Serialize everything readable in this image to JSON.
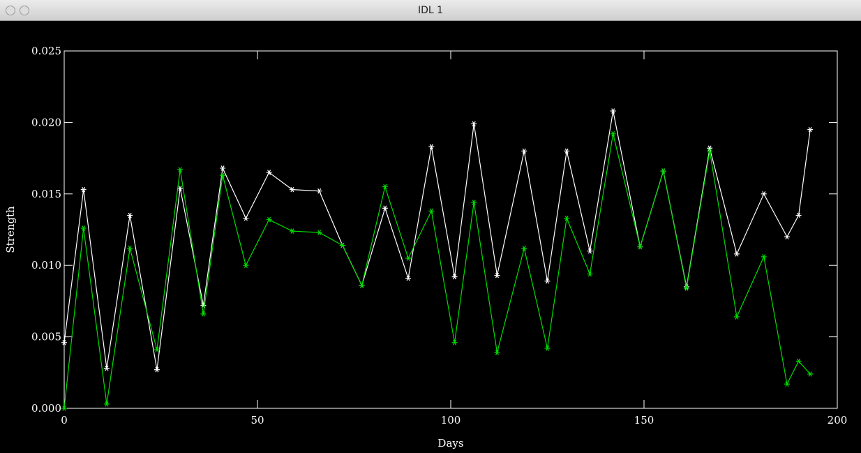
{
  "window": {
    "title": "IDL 1"
  },
  "chart_data": {
    "type": "line",
    "x_label": "Days",
    "y_label": "Strength",
    "x": [
      0,
      5,
      11,
      17,
      24,
      30,
      36,
      41,
      47,
      53,
      59,
      66,
      72,
      77,
      83,
      89,
      95,
      101,
      106,
      112,
      119,
      125,
      130,
      136,
      142,
      149,
      155,
      161,
      167,
      174,
      181,
      187,
      190,
      193
    ],
    "series": [
      {
        "color": "#ffffff",
        "values": [
          0.0046,
          0.0153,
          0.0028,
          0.0135,
          0.0027,
          0.0154,
          0.0072,
          0.0168,
          0.0133,
          0.0165,
          0.0153,
          0.0152,
          0.0114,
          0.0086,
          0.014,
          0.0091,
          0.0183,
          0.0092,
          0.0199,
          0.0093,
          0.018,
          0.0089,
          0.018,
          0.011,
          0.0208,
          0.0113,
          0.0166,
          0.0085,
          0.0182,
          0.0108,
          0.015,
          0.012,
          0.0135,
          0.0195
        ]
      },
      {
        "color": "#00dd00",
        "values": [
          0.0,
          0.0126,
          0.0003,
          0.0112,
          0.0041,
          0.0167,
          0.0066,
          0.0163,
          0.01,
          0.0132,
          0.0124,
          0.0123,
          0.0114,
          0.0086,
          0.0155,
          0.0105,
          0.0138,
          0.0046,
          0.0144,
          0.0039,
          0.0112,
          0.0042,
          0.0133,
          0.0094,
          0.0192,
          0.0113,
          0.0166,
          0.0084,
          0.018,
          0.0064,
          0.0106,
          0.0017,
          0.0033,
          0.0024
        ]
      }
    ],
    "xlim": [
      0,
      200
    ],
    "xticks": [
      0,
      50,
      100,
      150,
      200
    ],
    "ylim": [
      0,
      0.025
    ],
    "yticks": [
      {
        "value": 0,
        "label": "0.000"
      },
      {
        "value": 0.005,
        "label": "0.005"
      },
      {
        "value": 0.01,
        "label": "0.010"
      },
      {
        "value": 0.015,
        "label": "0.015"
      },
      {
        "value": 0.02,
        "label": "0.020"
      },
      {
        "value": 0.025,
        "label": "0.025"
      }
    ],
    "marker": "asterisk"
  }
}
